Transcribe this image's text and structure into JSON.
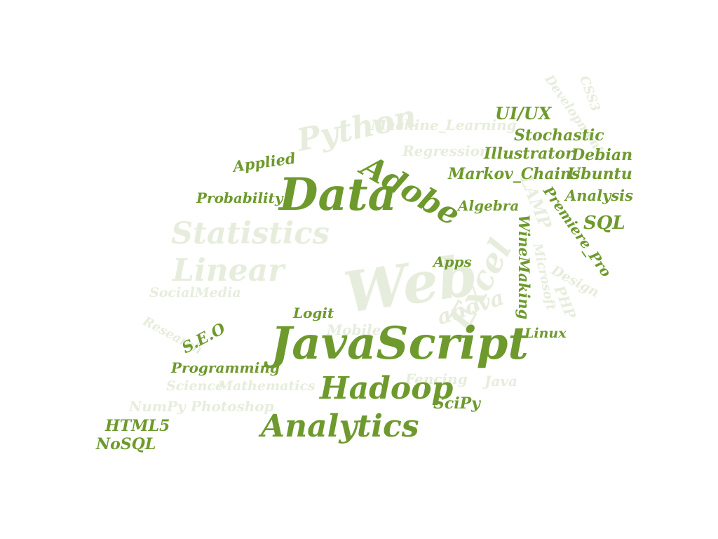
{
  "palette": {
    "primary": "#6e9a2d",
    "faded": "#e7eddd",
    "background": "#ffffff"
  },
  "words": {
    "web": "Web",
    "excel": "Excel",
    "python": "Python",
    "statistics": "Statistics",
    "linear": "Linear",
    "machine_learning": "Machine_Learning",
    "regression": "Regression",
    "development": "Development",
    "css3": "CSS3",
    "lamp": "LAMP",
    "microsoft": "Microsoft",
    "php": "PHP",
    "design": "Design",
    "anova": "anova",
    "mobile": "Mobile",
    "socialmedia": "SocialMedia",
    "research": "Research",
    "science": "Science",
    "mathematics": "Mathematics",
    "numpy": "NumPy",
    "photoshop": "Photoshop",
    "fencing": "Fencing",
    "java": "Java",
    "javascript": "JavaScript",
    "data": "Data",
    "adobe": "Adobe",
    "hadoop": "Hadoop",
    "analytics": "Analytics",
    "ui_ux": "UI/UX",
    "stochastic": "Stochastic",
    "illustrator": "Illustrator",
    "debian": "Debian",
    "markov_chains": "Markov_Chains",
    "ubuntu": "Ubuntu",
    "analysis": "Analysis",
    "premiere_pro": "Premiere_Pro",
    "sql": "SQL",
    "applied": "Applied",
    "probability": "Probability",
    "algebra": "Algebra",
    "winemaking": "WineMaking",
    "apps": "Apps",
    "logit": "Logit",
    "seo": "S.E.O",
    "linux": "Linux",
    "programming": "Programming",
    "scipy": "SciPy",
    "html5": "HTML5",
    "nosql": "NoSQL"
  }
}
